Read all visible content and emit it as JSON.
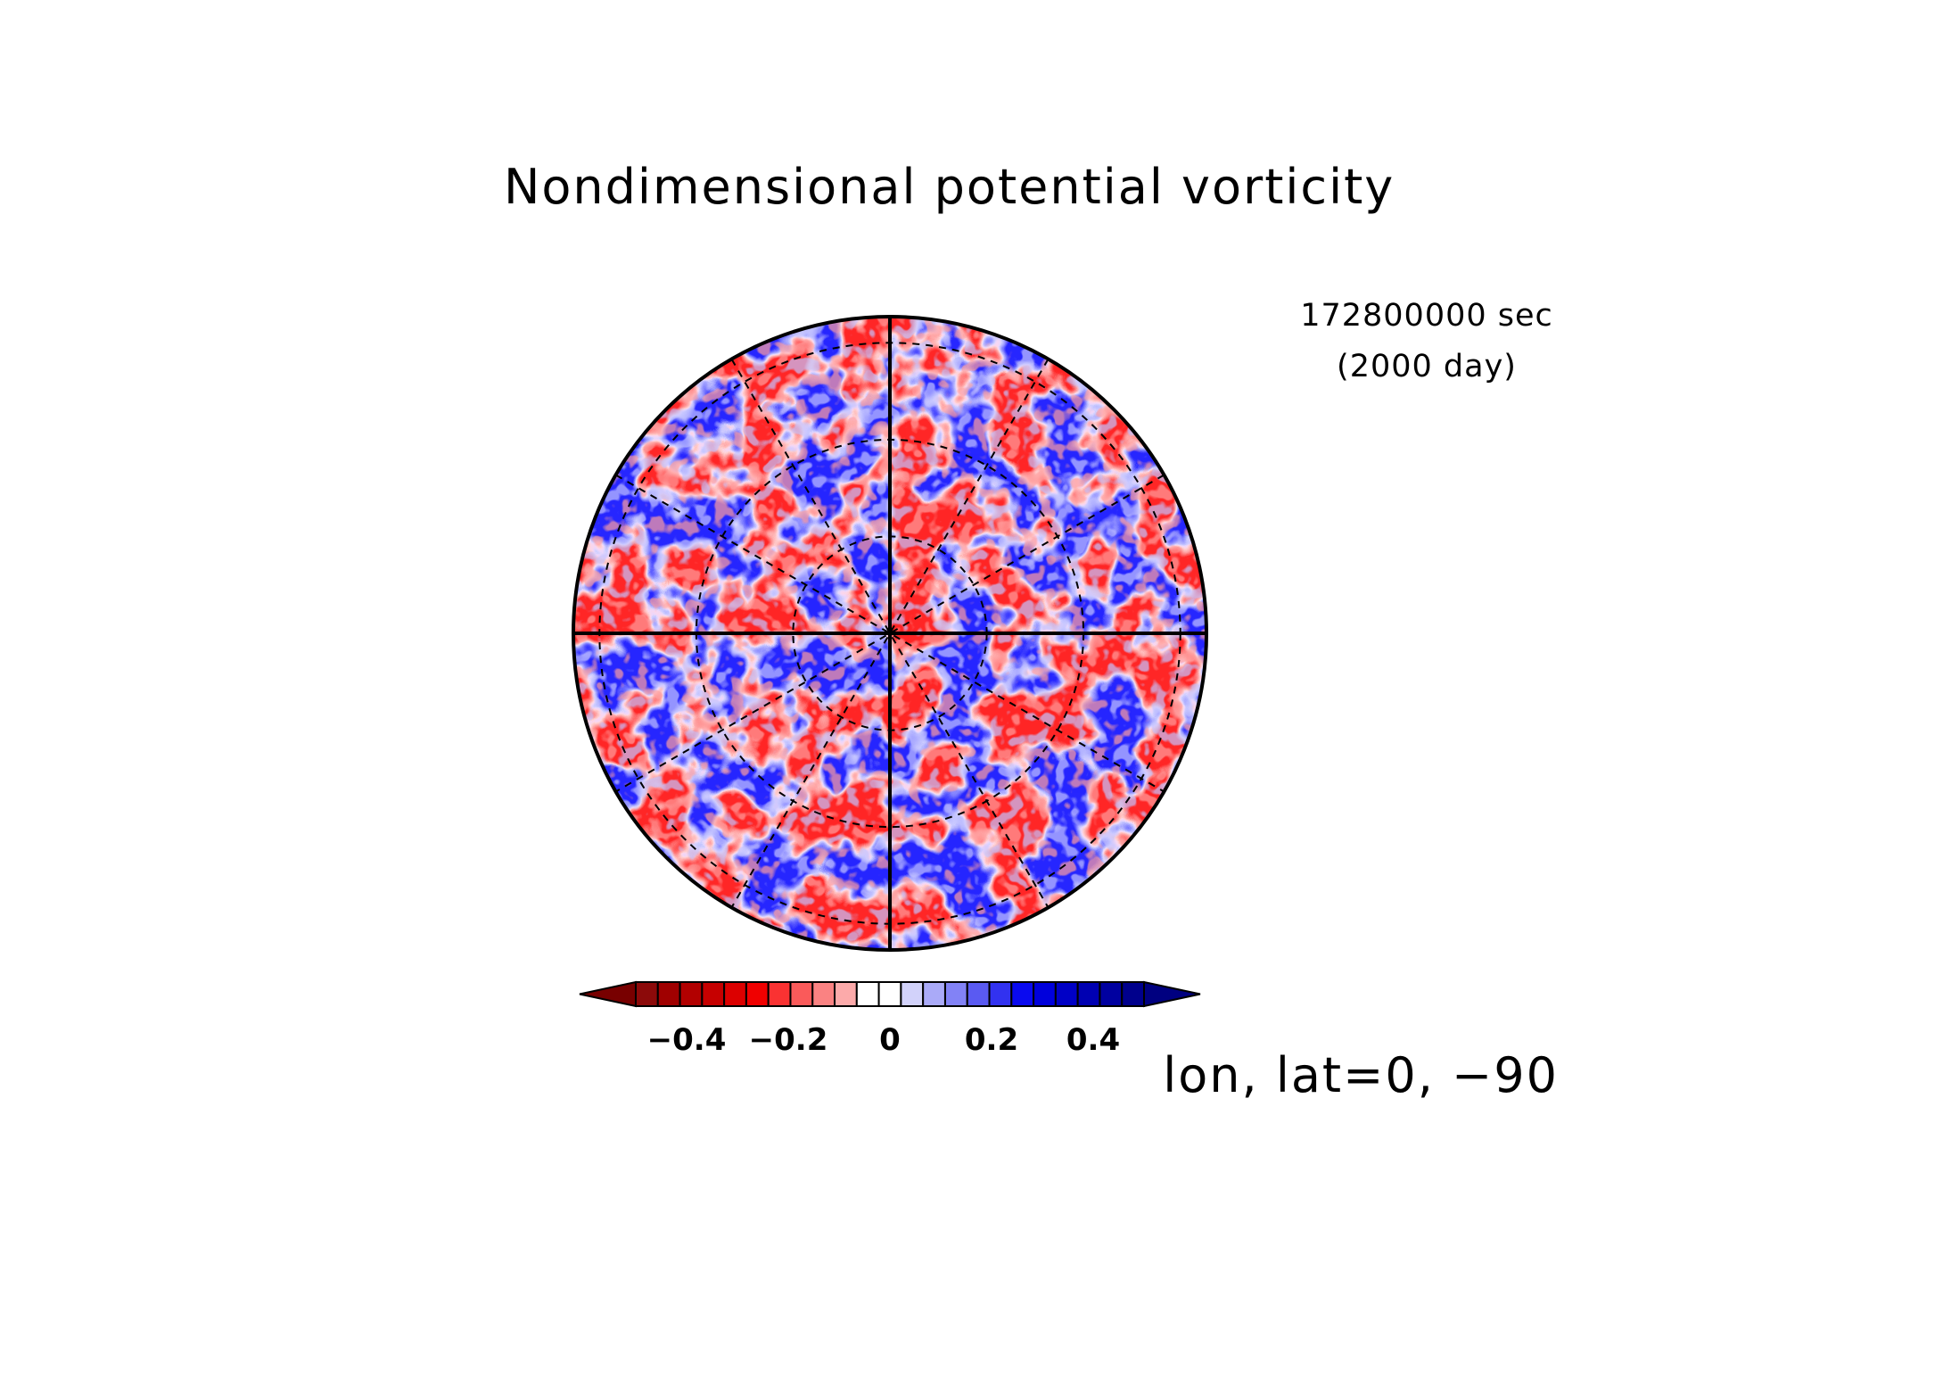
{
  "figure": {
    "title": "Nondimensional potential vorticity",
    "time_sec": "172800000 sec",
    "time_day": "(2000 day)",
    "coords": "lon, lat=0, −90"
  },
  "colorbar": {
    "tick_labels": [
      "−0.4",
      "−0.2",
      "0",
      "0.2",
      "0.4"
    ],
    "tick_values": [
      -0.4,
      -0.2,
      0,
      0.2,
      0.4
    ],
    "range": [
      -0.5,
      0.5
    ],
    "colors": [
      "#8c0a0a",
      "#a00000",
      "#b20000",
      "#c60000",
      "#dc0000",
      "#f00000",
      "#fa3232",
      "#fa5a5a",
      "#fa8282",
      "#fcaaaa",
      "#ffffff",
      "#ffffff",
      "#d2d2fa",
      "#aaaaf8",
      "#8282f6",
      "#5a5af2",
      "#3232f0",
      "#0a0af0",
      "#0000dc",
      "#0000c6",
      "#0000b2",
      "#0000a0",
      "#00008c"
    ],
    "under_color": "#780000",
    "over_color": "#000080"
  },
  "map": {
    "projection": "polar-stereographic",
    "center": "south-pole",
    "meridian_step_deg": 30,
    "latitude_circles": 3
  }
}
